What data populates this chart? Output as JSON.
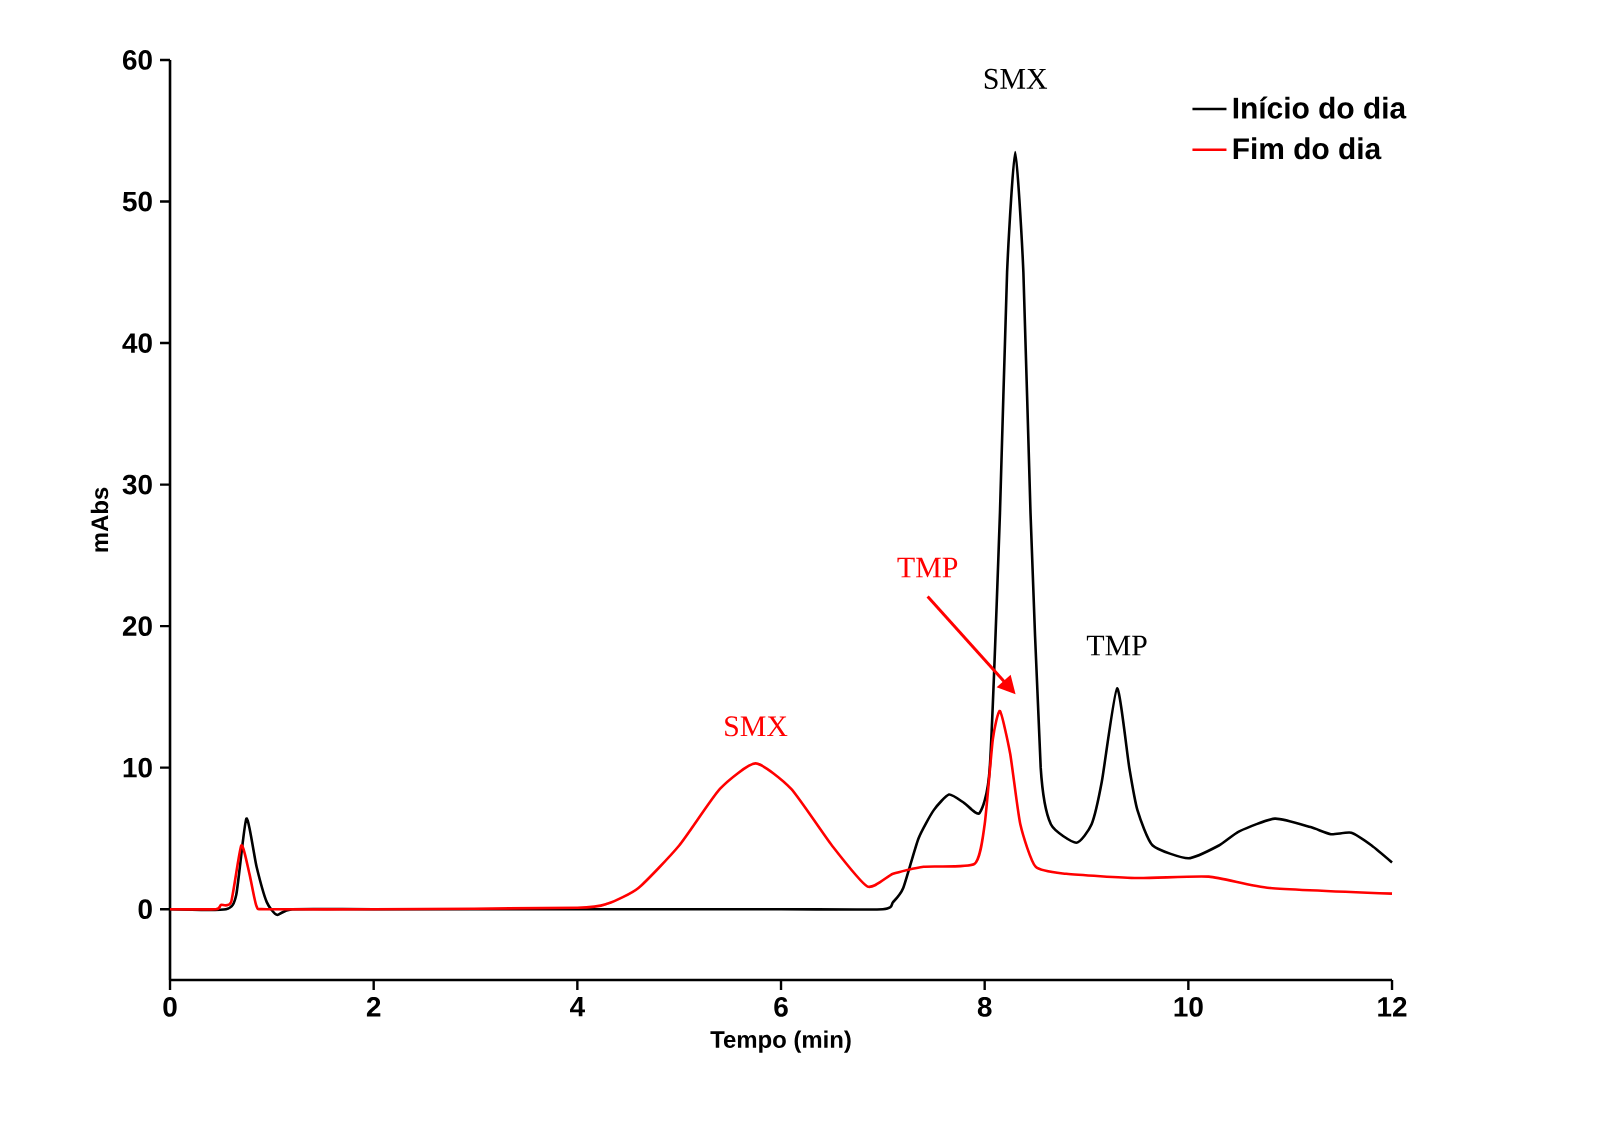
{
  "chart_data": {
    "type": "line",
    "xlabel": "Tempo (min)",
    "ylabel": "mAbs",
    "xlim": [
      0,
      12
    ],
    "ylim": [
      -5,
      60
    ],
    "xticks": [
      0,
      2,
      4,
      6,
      8,
      10,
      12
    ],
    "yticks": [
      0,
      10,
      20,
      30,
      40,
      50,
      60
    ],
    "legend": "top right",
    "grid": false,
    "marker": "none",
    "line_style": "solid",
    "series": [
      {
        "name": "Início do dia",
        "color": "#000000",
        "x": [
          0,
          0.55,
          0.65,
          0.75,
          0.85,
          0.95,
          1.05,
          1.2,
          2,
          4,
          6,
          7.0,
          7.1,
          7.2,
          7.35,
          7.5,
          7.65,
          7.8,
          7.95,
          8.05,
          8.15,
          8.22,
          8.3,
          8.38,
          8.45,
          8.55,
          8.65,
          8.9,
          9.05,
          9.15,
          9.3,
          9.42,
          9.5,
          9.65,
          10.0,
          10.3,
          10.5,
          10.85,
          11.2,
          11.4,
          11.6,
          11.8,
          12
        ],
        "values": [
          0,
          0,
          1,
          6.4,
          3,
          0.5,
          -0.4,
          0,
          0,
          0,
          0,
          0,
          0.5,
          1.5,
          5,
          7,
          8.1,
          7.5,
          6.8,
          10,
          28,
          45,
          53.5,
          45,
          28,
          10,
          6,
          4.7,
          6,
          9,
          15.6,
          10,
          7,
          4.5,
          3.6,
          4.5,
          5.5,
          6.4,
          5.8,
          5.3,
          5.4,
          4.5,
          3.3
        ]
      },
      {
        "name": "Fim do dia",
        "color": "#ff0000",
        "x": [
          0,
          0.45,
          0.5,
          0.6,
          0.7,
          0.78,
          0.85,
          0.95,
          2,
          4,
          4.3,
          4.6,
          5.0,
          5.4,
          5.75,
          6.1,
          6.5,
          6.85,
          7.1,
          7.4,
          7.9,
          8.0,
          8.08,
          8.15,
          8.25,
          8.35,
          8.5,
          8.8,
          9.5,
          10.2,
          10.8,
          12
        ],
        "values": [
          0,
          0,
          0.3,
          0.5,
          4.5,
          2.5,
          0.2,
          0,
          0,
          0.1,
          0.4,
          1.5,
          4.5,
          8.5,
          10.3,
          8.5,
          4.5,
          1.6,
          2.5,
          3,
          3.2,
          6,
          12,
          14,
          11,
          6,
          3,
          2.5,
          2.2,
          2.3,
          1.5,
          1.1
        ]
      }
    ],
    "annotations": [
      {
        "text": "SMX",
        "x": 8.3,
        "y": 53.5
      },
      {
        "text": "SMX",
        "x": 5.75,
        "y": 10.3
      },
      "TMP",
      {
        "text": "TMP",
        "x": 9.3,
        "y": 15.6
      }
    ]
  }
}
